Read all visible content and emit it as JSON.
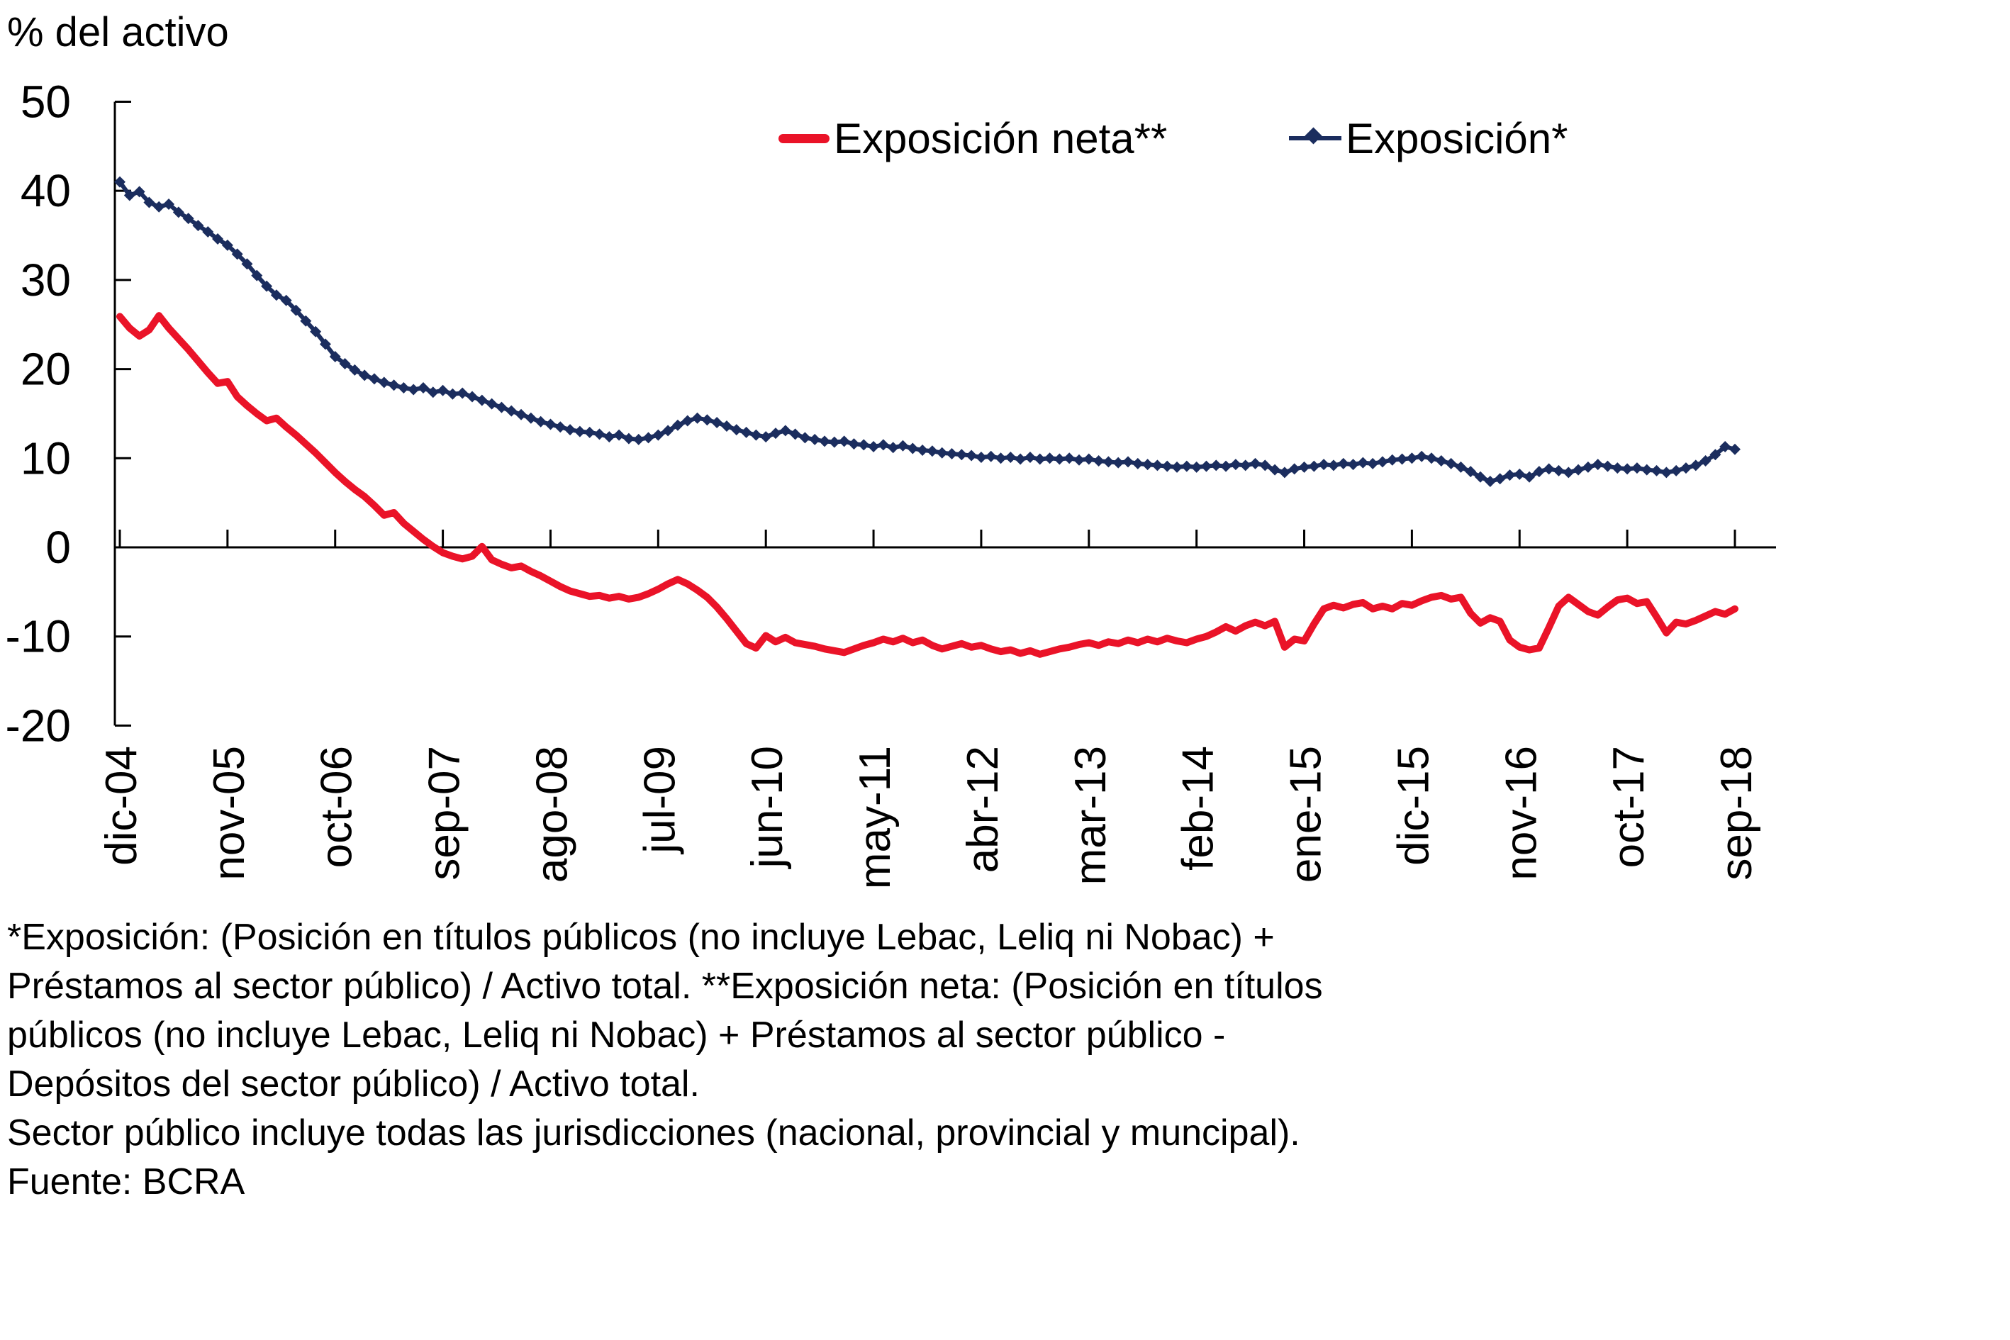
{
  "title": "% del activo",
  "legend": {
    "items": [
      {
        "label": "Exposición neta**",
        "color": "#ea1328",
        "marker": "none"
      },
      {
        "label": "Exposición*",
        "color": "#1b2d5e",
        "marker": "diamond"
      }
    ]
  },
  "footnote": {
    "lines": [
      "*Exposición: (Posición en títulos públicos (no incluye Lebac, Leliq ni Nobac) +",
      "Préstamos al sector público) / Activo total. **Exposición neta: (Posición en títulos",
      "públicos (no incluye Lebac, Leliq ni Nobac) + Préstamos al sector público -",
      "Depósitos del sector público) / Activo total.",
      "Sector público incluye todas las jurisdicciones (nacional, provincial y muncipal).",
      "Fuente: BCRA"
    ]
  },
  "colors": {
    "series_neta": "#ea1328",
    "series_bruta": "#1b2d5e",
    "axis": "#000000",
    "background": "#ffffff"
  },
  "chart_data": {
    "type": "line",
    "title": "% del activo",
    "ylabel": "% del activo",
    "xlabel": "",
    "ylim": [
      -20,
      50
    ],
    "yticks": [
      50,
      40,
      30,
      20,
      10,
      0,
      -10,
      -20
    ],
    "grid": false,
    "legend_position": "top",
    "x_start": "dic-04",
    "x_end": "sep-18",
    "x_frequency": "monthly",
    "n_points": 166,
    "xtick_interval_months": 11,
    "xtick_labels": [
      "dic-04",
      "nov-05",
      "oct-06",
      "sep-07",
      "ago-08",
      "jul-09",
      "jun-10",
      "may-11",
      "abr-12",
      "mar-13",
      "feb-14",
      "ene-15",
      "dic-15",
      "nov-16",
      "oct-17",
      "sep-18"
    ],
    "series": [
      {
        "name": "Exposición neta**",
        "color": "#ea1328",
        "marker": "none",
        "values": [
          25.9,
          24.6,
          23.7,
          24.4,
          26.0,
          24.6,
          23.4,
          22.2,
          20.9,
          19.6,
          18.4,
          18.6,
          16.9,
          15.9,
          15.0,
          14.2,
          14.5,
          13.5,
          12.6,
          11.6,
          10.6,
          9.5,
          8.4,
          7.4,
          6.5,
          5.7,
          4.7,
          3.6,
          3.9,
          2.7,
          1.8,
          0.9,
          0.1,
          -0.6,
          -1.0,
          -1.3,
          -1.0,
          0.1,
          -1.4,
          -1.9,
          -2.3,
          -2.1,
          -2.7,
          -3.2,
          -3.8,
          -4.4,
          -4.9,
          -5.2,
          -5.5,
          -5.4,
          -5.7,
          -5.5,
          -5.8,
          -5.6,
          -5.2,
          -4.7,
          -4.1,
          -3.6,
          -4.1,
          -4.8,
          -5.6,
          -6.7,
          -8.0,
          -9.4,
          -10.8,
          -11.3,
          -9.9,
          -10.6,
          -10.1,
          -10.7,
          -10.9,
          -11.1,
          -11.4,
          -11.6,
          -11.8,
          -11.4,
          -11.0,
          -10.7,
          -10.3,
          -10.6,
          -10.2,
          -10.7,
          -10.4,
          -11.0,
          -11.4,
          -11.1,
          -10.8,
          -11.2,
          -11.0,
          -11.4,
          -11.7,
          -11.5,
          -11.9,
          -11.6,
          -12.0,
          -11.7,
          -11.4,
          -11.2,
          -10.9,
          -10.7,
          -11.0,
          -10.6,
          -10.8,
          -10.4,
          -10.7,
          -10.3,
          -10.6,
          -10.2,
          -10.5,
          -10.7,
          -10.3,
          -10.0,
          -9.5,
          -8.9,
          -9.4,
          -8.8,
          -8.4,
          -8.8,
          -8.3,
          -11.2,
          -10.3,
          -10.5,
          -8.6,
          -6.9,
          -6.5,
          -6.8,
          -6.4,
          -6.2,
          -6.9,
          -6.6,
          -6.9,
          -6.3,
          -6.5,
          -6.0,
          -5.6,
          -5.4,
          -5.8,
          -5.6,
          -7.4,
          -8.5,
          -7.9,
          -8.3,
          -10.4,
          -11.2,
          -11.5,
          -11.3,
          -9.0,
          -6.6,
          -5.6,
          -6.4,
          -7.2,
          -7.6,
          -6.7,
          -5.9,
          -5.7,
          -6.3,
          -6.1,
          -7.8,
          -9.6,
          -8.4,
          -8.6,
          -8.2,
          -7.7,
          -7.2,
          -7.5,
          -6.9
        ]
      },
      {
        "name": "Exposición*",
        "color": "#1b2d5e",
        "marker": "diamond",
        "values": [
          41.0,
          39.5,
          39.9,
          38.7,
          38.2,
          38.5,
          37.6,
          36.9,
          36.1,
          35.4,
          34.6,
          33.9,
          32.9,
          31.8,
          30.5,
          29.3,
          28.3,
          27.7,
          26.6,
          25.4,
          24.2,
          22.8,
          21.4,
          20.6,
          19.9,
          19.3,
          18.9,
          18.5,
          18.2,
          17.9,
          17.7,
          17.9,
          17.4,
          17.6,
          17.2,
          17.3,
          16.9,
          16.5,
          16.1,
          15.7,
          15.3,
          14.9,
          14.5,
          14.1,
          13.8,
          13.5,
          13.2,
          13.0,
          12.9,
          12.7,
          12.4,
          12.6,
          12.2,
          12.1,
          12.3,
          12.6,
          13.1,
          13.7,
          14.2,
          14.5,
          14.3,
          14.0,
          13.6,
          13.2,
          12.9,
          12.6,
          12.4,
          12.8,
          13.1,
          12.7,
          12.3,
          12.1,
          11.9,
          11.8,
          11.9,
          11.6,
          11.5,
          11.3,
          11.5,
          11.2,
          11.4,
          11.1,
          10.9,
          10.8,
          10.6,
          10.5,
          10.4,
          10.3,
          10.1,
          10.2,
          10.0,
          10.1,
          9.9,
          10.1,
          9.9,
          10.0,
          9.9,
          10.0,
          9.8,
          9.9,
          9.7,
          9.6,
          9.5,
          9.6,
          9.4,
          9.3,
          9.2,
          9.1,
          9.0,
          9.1,
          9.0,
          9.1,
          9.2,
          9.1,
          9.3,
          9.2,
          9.4,
          9.2,
          8.7,
          8.4,
          8.8,
          9.0,
          9.1,
          9.3,
          9.2,
          9.4,
          9.3,
          9.5,
          9.4,
          9.6,
          9.8,
          9.9,
          10.0,
          10.2,
          10.0,
          9.7,
          9.4,
          9.0,
          8.5,
          7.9,
          7.4,
          7.7,
          8.1,
          8.2,
          7.9,
          8.5,
          8.8,
          8.6,
          8.4,
          8.7,
          9.0,
          9.3,
          9.1,
          8.9,
          8.8,
          8.9,
          8.7,
          8.6,
          8.4,
          8.6,
          8.9,
          9.2,
          9.7,
          10.4,
          11.3,
          11.0
        ]
      }
    ]
  }
}
